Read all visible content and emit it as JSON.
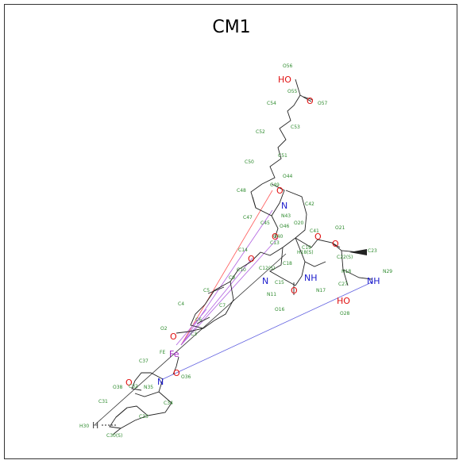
{
  "title": "CM1",
  "colors": {
    "carbon_label": "#2e8b2e",
    "oxygen": "#e01010",
    "nitrogen": "#1a1acc",
    "iron": "#a020c0",
    "bond": "#222222",
    "coord_red": "#ff5555",
    "coord_violet": "#b060e0",
    "coord_blue": "#6060e0"
  },
  "hetero": [
    {
      "id": "ho-top",
      "text": "HO",
      "color": "oxygen"
    },
    {
      "id": "o-57",
      "text": "O",
      "color": "oxygen"
    },
    {
      "id": "o-44",
      "text": "O",
      "color": "oxygen"
    },
    {
      "id": "n-43",
      "text": "N",
      "color": "nitrogen"
    },
    {
      "id": "o-40",
      "text": "O",
      "color": "oxygen"
    },
    {
      "id": "o-39",
      "text": "O",
      "color": "oxygen"
    },
    {
      "id": "o-14",
      "text": "O",
      "color": "oxygen"
    },
    {
      "id": "o-22",
      "text": "O",
      "color": "oxygen"
    },
    {
      "id": "n-11",
      "text": "N",
      "color": "nitrogen"
    },
    {
      "id": "nh-17",
      "text": "NH",
      "color": "nitrogen"
    },
    {
      "id": "o-16",
      "text": "O",
      "color": "oxygen"
    },
    {
      "id": "nh-29",
      "text": "NH",
      "color": "nitrogen"
    },
    {
      "id": "ho-28",
      "text": "HO",
      "color": "oxygen"
    },
    {
      "id": "o-2",
      "text": "O",
      "color": "oxygen"
    },
    {
      "id": "fe",
      "text": "Fe",
      "color": "iron"
    },
    {
      "id": "o-36",
      "text": "O",
      "color": "oxygen"
    },
    {
      "id": "o-38",
      "text": "O",
      "color": "oxygen"
    },
    {
      "id": "n-35",
      "text": "N",
      "color": "nitrogen"
    },
    {
      "id": "h-30",
      "text": "H",
      "color": "bond"
    }
  ],
  "labels": [
    "O56",
    "O55",
    "C54",
    "O57",
    "C53",
    "C52",
    "C51",
    "C50",
    "C49",
    "O44",
    "C48",
    "N43",
    "C42",
    "C47",
    "C45",
    "O46",
    "O20",
    "C41",
    "O40",
    "O21",
    "C13",
    "C14",
    "H18(S)",
    "C19",
    "C23",
    "C22(S)",
    "C10",
    "C12(S)",
    "C9",
    "C18",
    "H18",
    "N11",
    "C15",
    "C5",
    "C4",
    "C7",
    "N17",
    "C27",
    "N29",
    "O16",
    "C6",
    "C3",
    "O2",
    "FE",
    "C37",
    "O36",
    "O38",
    "N35",
    "C32",
    "C31",
    "C34",
    "C33",
    "H30",
    "C30(S)",
    "O28"
  ]
}
